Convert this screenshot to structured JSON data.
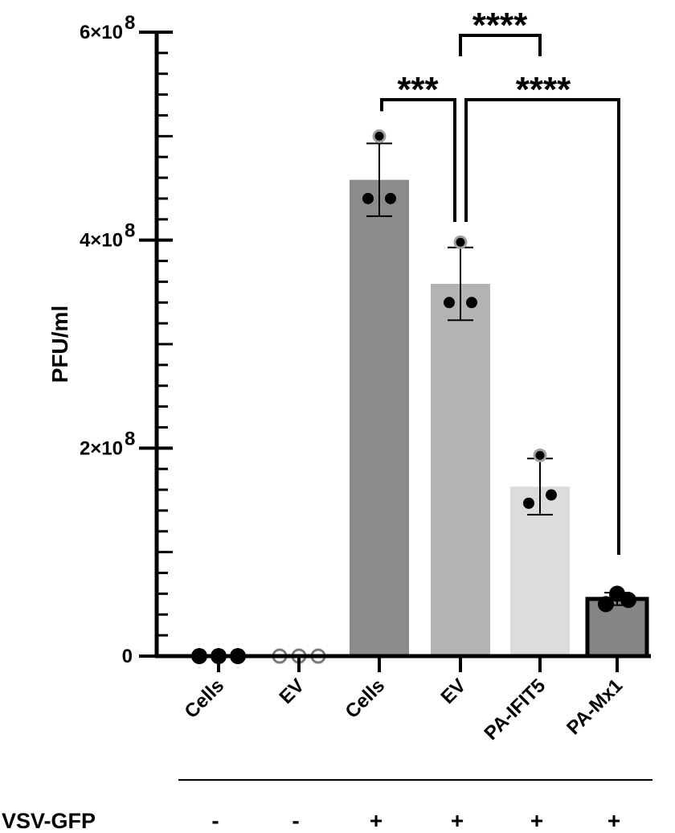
{
  "chart_data": {
    "type": "bar",
    "ylabel": "PFU/ml",
    "ylim": [
      0,
      600000000
    ],
    "yticks": [
      {
        "value": 0,
        "label": "0"
      },
      {
        "value": 200000000,
        "label": "2×10",
        "exp": "8"
      },
      {
        "value": 400000000,
        "label": "4×10",
        "exp": "8"
      },
      {
        "value": 600000000,
        "label": "6×10",
        "exp": "8"
      }
    ],
    "categories": [
      "Cells",
      "EV",
      "Cells",
      "EV",
      "PA-IFIT5",
      "PA-Mx1"
    ],
    "values": [
      0,
      0,
      458000000,
      358000000,
      163000000,
      55000000
    ],
    "errors": [
      0,
      0,
      35000000,
      35000000,
      27000000,
      6000000
    ],
    "points": [
      [
        0,
        0,
        0
      ],
      [
        0,
        0,
        0
      ],
      [
        500000000,
        440000000,
        440000000
      ],
      [
        398000000,
        340000000,
        340000000
      ],
      [
        193000000,
        147000000,
        155000000
      ],
      [
        60000000,
        50000000,
        54000000
      ]
    ],
    "bar_colors": [
      "#ffffff",
      "#ffffff",
      "#8c8c8c",
      "#b3b3b4",
      "#dcdcdc",
      "#858585"
    ],
    "point_styles": [
      "filled",
      "open",
      "filled",
      "filled",
      "filled",
      "filled"
    ],
    "significance": [
      {
        "from": 2,
        "to": 3,
        "label": "***"
      },
      {
        "from": 3,
        "to": 4,
        "label": "****"
      },
      {
        "from": 3,
        "to": 5,
        "label": "****"
      }
    ],
    "treatment": {
      "label": "VSV-GFP",
      "values": [
        "-",
        "-",
        "+",
        "+",
        "+",
        "+"
      ]
    }
  }
}
